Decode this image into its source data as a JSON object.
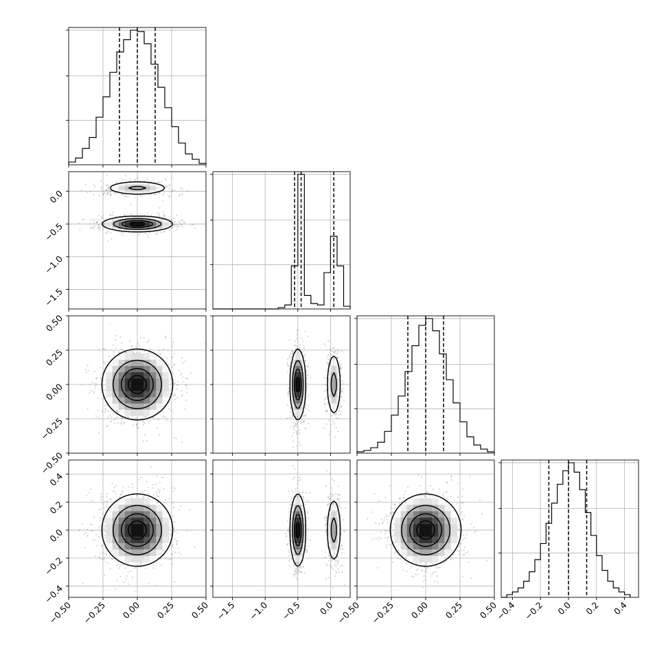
{
  "chart_data": [
    {
      "type": "histogram",
      "panel": "p1-marginal",
      "bin_edges": [
        -0.5,
        -0.45,
        -0.4,
        -0.35,
        -0.3,
        -0.25,
        -0.2,
        -0.15,
        -0.1,
        -0.05,
        0.0,
        0.05,
        0.1,
        0.15,
        0.2,
        0.25,
        0.3,
        0.35,
        0.4,
        0.45,
        0.5
      ],
      "counts": [
        0.02,
        0.05,
        0.12,
        0.2,
        0.35,
        0.5,
        0.68,
        0.83,
        0.92,
        0.99,
        0.98,
        0.89,
        0.74,
        0.57,
        0.42,
        0.28,
        0.16,
        0.08,
        0.04,
        0.01
      ],
      "quantiles": [
        -0.13,
        0.0,
        0.13
      ],
      "xlim": [
        -0.5,
        0.5
      ],
      "grid": true
    },
    {
      "type": "histogram",
      "panel": "p2-marginal",
      "bin_edges": [
        -1.8,
        -1.7,
        -1.6,
        -1.5,
        -1.4,
        -1.3,
        -1.2,
        -1.1,
        -1.0,
        -0.9,
        -0.8,
        -0.7,
        -0.6,
        -0.5,
        -0.4,
        -0.3,
        -0.2,
        -0.1,
        0.0,
        0.1,
        0.2,
        0.3
      ],
      "counts": [
        0,
        0,
        0,
        0,
        0,
        0,
        0,
        0,
        0,
        0,
        0.01,
        0.03,
        0.32,
        1.0,
        0.1,
        0.04,
        0.03,
        0.27,
        0.54,
        0.32,
        0.02
      ],
      "quantiles": [
        -0.55,
        -0.45,
        0.05
      ],
      "xlim": [
        -1.8,
        0.3
      ],
      "grid": true
    },
    {
      "type": "histogram",
      "panel": "p3-marginal",
      "bin_edges": [
        -0.5,
        -0.45,
        -0.4,
        -0.35,
        -0.3,
        -0.25,
        -0.2,
        -0.15,
        -0.1,
        -0.05,
        0.0,
        0.05,
        0.1,
        0.15,
        0.2,
        0.25,
        0.3,
        0.35,
        0.4,
        0.45,
        0.5
      ],
      "counts": [
        0.01,
        0.02,
        0.04,
        0.08,
        0.16,
        0.28,
        0.42,
        0.6,
        0.79,
        0.94,
        0.99,
        0.9,
        0.73,
        0.54,
        0.37,
        0.23,
        0.12,
        0.06,
        0.03,
        0.01
      ],
      "quantiles": [
        -0.13,
        0.0,
        0.13
      ],
      "xlim": [
        -0.5,
        0.5
      ],
      "grid": true
    },
    {
      "type": "histogram",
      "panel": "p4-marginal",
      "bin_edges": [
        -0.48,
        -0.44,
        -0.4,
        -0.36,
        -0.32,
        -0.28,
        -0.24,
        -0.2,
        -0.16,
        -0.12,
        -0.08,
        -0.04,
        0.0,
        0.04,
        0.08,
        0.12,
        0.16,
        0.2,
        0.24,
        0.28,
        0.32,
        0.36,
        0.4,
        0.44
      ],
      "counts": [
        0.0,
        0.02,
        0.04,
        0.07,
        0.12,
        0.19,
        0.28,
        0.4,
        0.55,
        0.7,
        0.84,
        0.94,
        1.0,
        0.93,
        0.8,
        0.63,
        0.46,
        0.31,
        0.2,
        0.12,
        0.07,
        0.04,
        0.02
      ],
      "quantiles": [
        -0.14,
        0.0,
        0.13
      ],
      "xlim": [
        -0.48,
        0.5
      ],
      "grid": true
    },
    {
      "type": "contour",
      "panel": "p2-vs-p1",
      "xlim": [
        -0.5,
        0.5
      ],
      "ylim": [
        -1.8,
        0.3
      ],
      "yticks": [
        "0.0",
        "−0.5",
        "−1.0",
        "−1.5"
      ],
      "density_blobs": [
        {
          "cx": 0.0,
          "cy": 0.05,
          "sx": 0.13,
          "sy": 0.06,
          "w": 0.45
        },
        {
          "cx": 0.0,
          "cy": -0.5,
          "sx": 0.13,
          "sy": 0.06,
          "w": 1.0
        }
      ],
      "grid": true
    },
    {
      "type": "contour",
      "panel": "p3-vs-p1",
      "xlim": [
        -0.5,
        0.5
      ],
      "ylim": [
        -0.5,
        0.5
      ],
      "yticks": [
        "0.50",
        "0.25",
        "0.00",
        "−0.25",
        "−0.50"
      ],
      "density_blobs": [
        {
          "cx": 0.0,
          "cy": 0.0,
          "sx": 0.13,
          "sy": 0.13,
          "w": 1.0
        }
      ],
      "grid": true
    },
    {
      "type": "contour",
      "panel": "p3-vs-p2",
      "xlim": [
        -1.8,
        0.3
      ],
      "ylim": [
        -0.5,
        0.5
      ],
      "density_blobs": [
        {
          "cx": -0.5,
          "cy": 0.0,
          "sx": 0.06,
          "sy": 0.13,
          "w": 1.0
        },
        {
          "cx": 0.05,
          "cy": 0.0,
          "sx": 0.06,
          "sy": 0.13,
          "w": 0.5
        }
      ],
      "grid": true
    },
    {
      "type": "contour",
      "panel": "p4-vs-p1",
      "xlim": [
        -0.5,
        0.5
      ],
      "ylim": [
        -0.48,
        0.5
      ],
      "yticks": [
        "0.4",
        "0.2",
        "0.0",
        "−0.2",
        "−0.4"
      ],
      "density_blobs": [
        {
          "cx": 0.0,
          "cy": 0.0,
          "sx": 0.13,
          "sy": 0.13,
          "w": 1.0
        }
      ],
      "grid": true
    },
    {
      "type": "contour",
      "panel": "p4-vs-p2",
      "xlim": [
        -1.8,
        0.3
      ],
      "ylim": [
        -0.48,
        0.5
      ],
      "density_blobs": [
        {
          "cx": -0.5,
          "cy": 0.0,
          "sx": 0.06,
          "sy": 0.13,
          "w": 1.0
        },
        {
          "cx": 0.05,
          "cy": 0.0,
          "sx": 0.06,
          "sy": 0.13,
          "w": 0.5
        }
      ],
      "grid": true
    },
    {
      "type": "contour",
      "panel": "p4-vs-p3",
      "xlim": [
        -0.5,
        0.5
      ],
      "ylim": [
        -0.48,
        0.5
      ],
      "density_blobs": [
        {
          "cx": 0.0,
          "cy": 0.0,
          "sx": 0.13,
          "sy": 0.13,
          "w": 1.0
        }
      ],
      "grid": true
    }
  ],
  "axes": {
    "xticks": [
      [
        "−0.50",
        "−0.25",
        "0.00",
        "0.25",
        "0.50"
      ],
      [
        "−1.5",
        "−1.0",
        "−0.5",
        "0.0"
      ],
      [
        "−0.50",
        "−0.25",
        "0.00",
        "0.25",
        "0.50"
      ],
      [
        "−0.4",
        "−0.2",
        "0.0",
        "0.2",
        "0.4"
      ]
    ]
  }
}
